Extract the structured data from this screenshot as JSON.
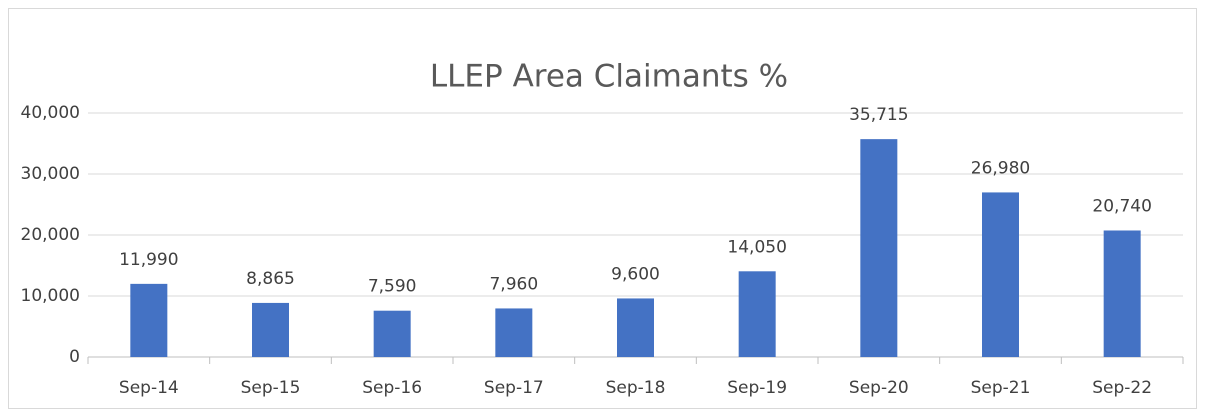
{
  "chart_data": {
    "type": "bar",
    "title": "LLEP Area Claimants %",
    "categories": [
      "Sep-14",
      "Sep-15",
      "Sep-16",
      "Sep-17",
      "Sep-18",
      "Sep-19",
      "Sep-20",
      "Sep-21",
      "Sep-22"
    ],
    "values": [
      11990,
      8865,
      7590,
      7960,
      9600,
      14050,
      35715,
      26980,
      20740
    ],
    "value_labels": [
      "11,990",
      "8,865",
      "7,590",
      "7,960",
      "9,600",
      "14,050",
      "35,715",
      "26,980",
      "20,740"
    ],
    "color": "#4472c4",
    "ylim": [
      0,
      40000
    ],
    "yticks": [
      0,
      {
        "value": 10000,
        "label": "10,000"
      },
      {
        "value": 20000,
        "label": "20,000"
      },
      {
        "value": 30000,
        "label": "30,000"
      },
      {
        "value": 40000,
        "label": "40,000"
      }
    ],
    "grid": true
  }
}
